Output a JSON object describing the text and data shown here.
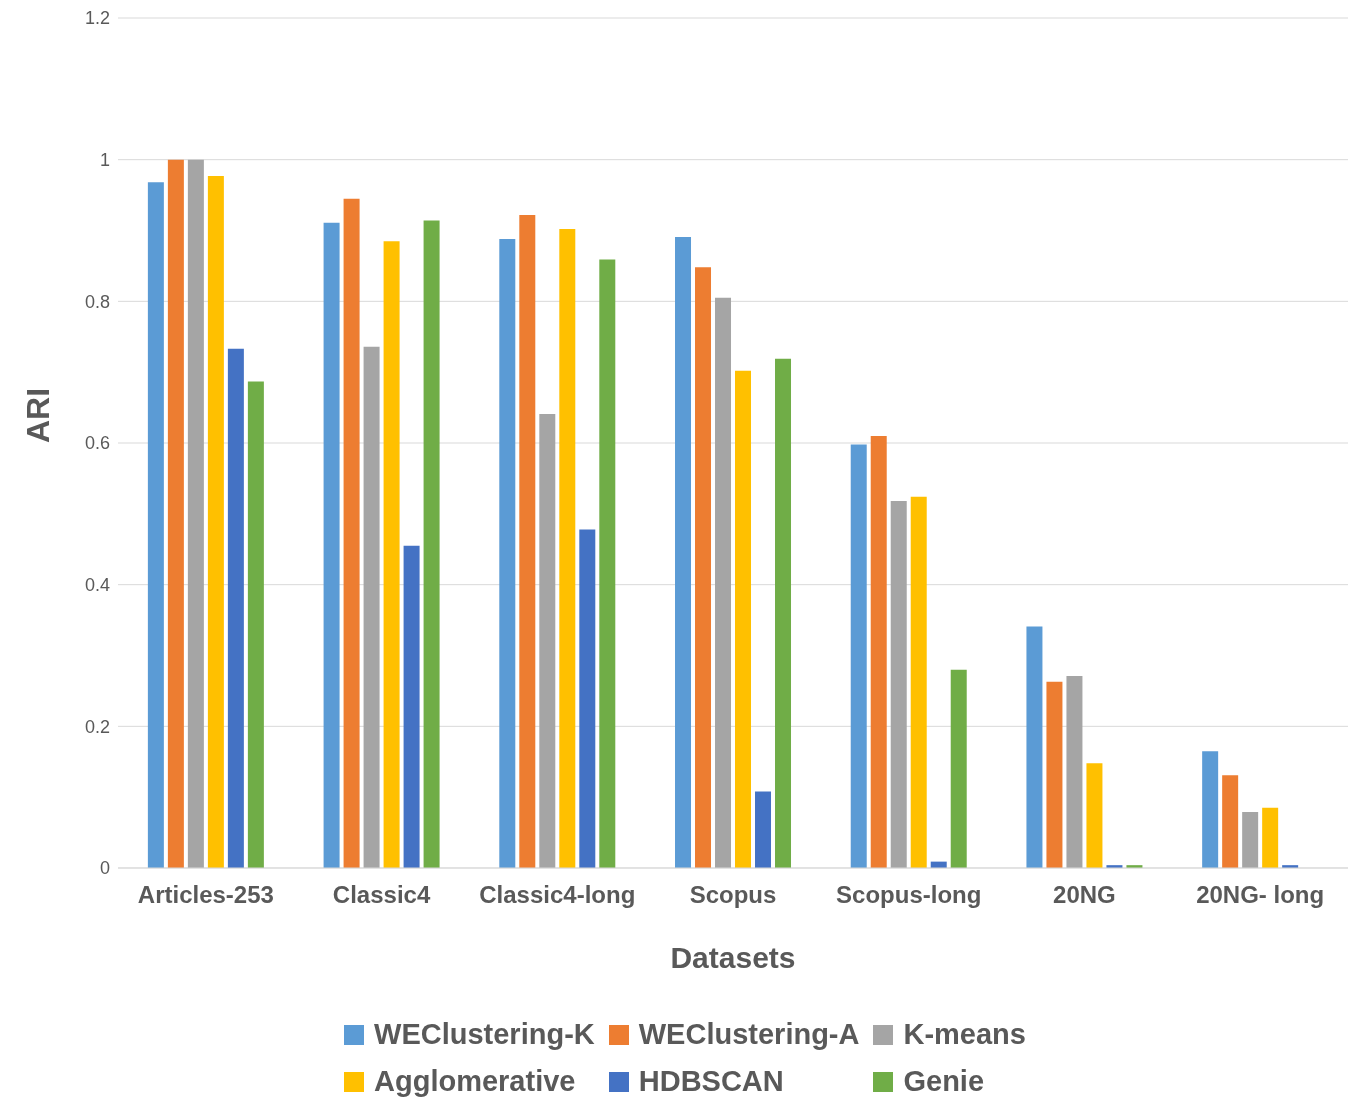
{
  "chart_data": {
    "type": "bar",
    "xlabel": "Datasets",
    "ylabel": "ARI",
    "categories": [
      "Articles-253",
      "Classic4",
      "Classic4-long",
      "Scopus",
      "Scopus-long",
      "20NG",
      "20NG- long"
    ],
    "series": [
      {
        "name": "WEClustering-K",
        "color": "#5b9bd5",
        "values": [
          0.968,
          0.911,
          0.888,
          0.891,
          0.598,
          0.341,
          0.165
        ]
      },
      {
        "name": "WEClustering-A",
        "color": "#ed7d31",
        "values": [
          1.0,
          0.945,
          0.922,
          0.848,
          0.61,
          0.263,
          0.131
        ]
      },
      {
        "name": "K-means",
        "color": "#a5a5a5",
        "values": [
          1.0,
          0.736,
          0.641,
          0.805,
          0.518,
          0.271,
          0.079
        ]
      },
      {
        "name": "Agglomerative",
        "color": "#ffc000",
        "values": [
          0.977,
          0.885,
          0.902,
          0.702,
          0.524,
          0.148,
          0.085
        ]
      },
      {
        "name": "HDBSCAN",
        "color": "#4472c4",
        "values": [
          0.733,
          0.455,
          0.478,
          0.108,
          0.009,
          0.004,
          0.004
        ]
      },
      {
        "name": "Genie",
        "color": "#70ad47",
        "values": [
          0.687,
          0.914,
          0.859,
          0.719,
          0.28,
          0.004,
          null
        ]
      }
    ],
    "ylim": [
      0,
      1.2
    ],
    "yticks": [
      0,
      0.2,
      0.4,
      0.6,
      0.8,
      1,
      1.2
    ],
    "grid": "y",
    "legend": "bottom"
  }
}
